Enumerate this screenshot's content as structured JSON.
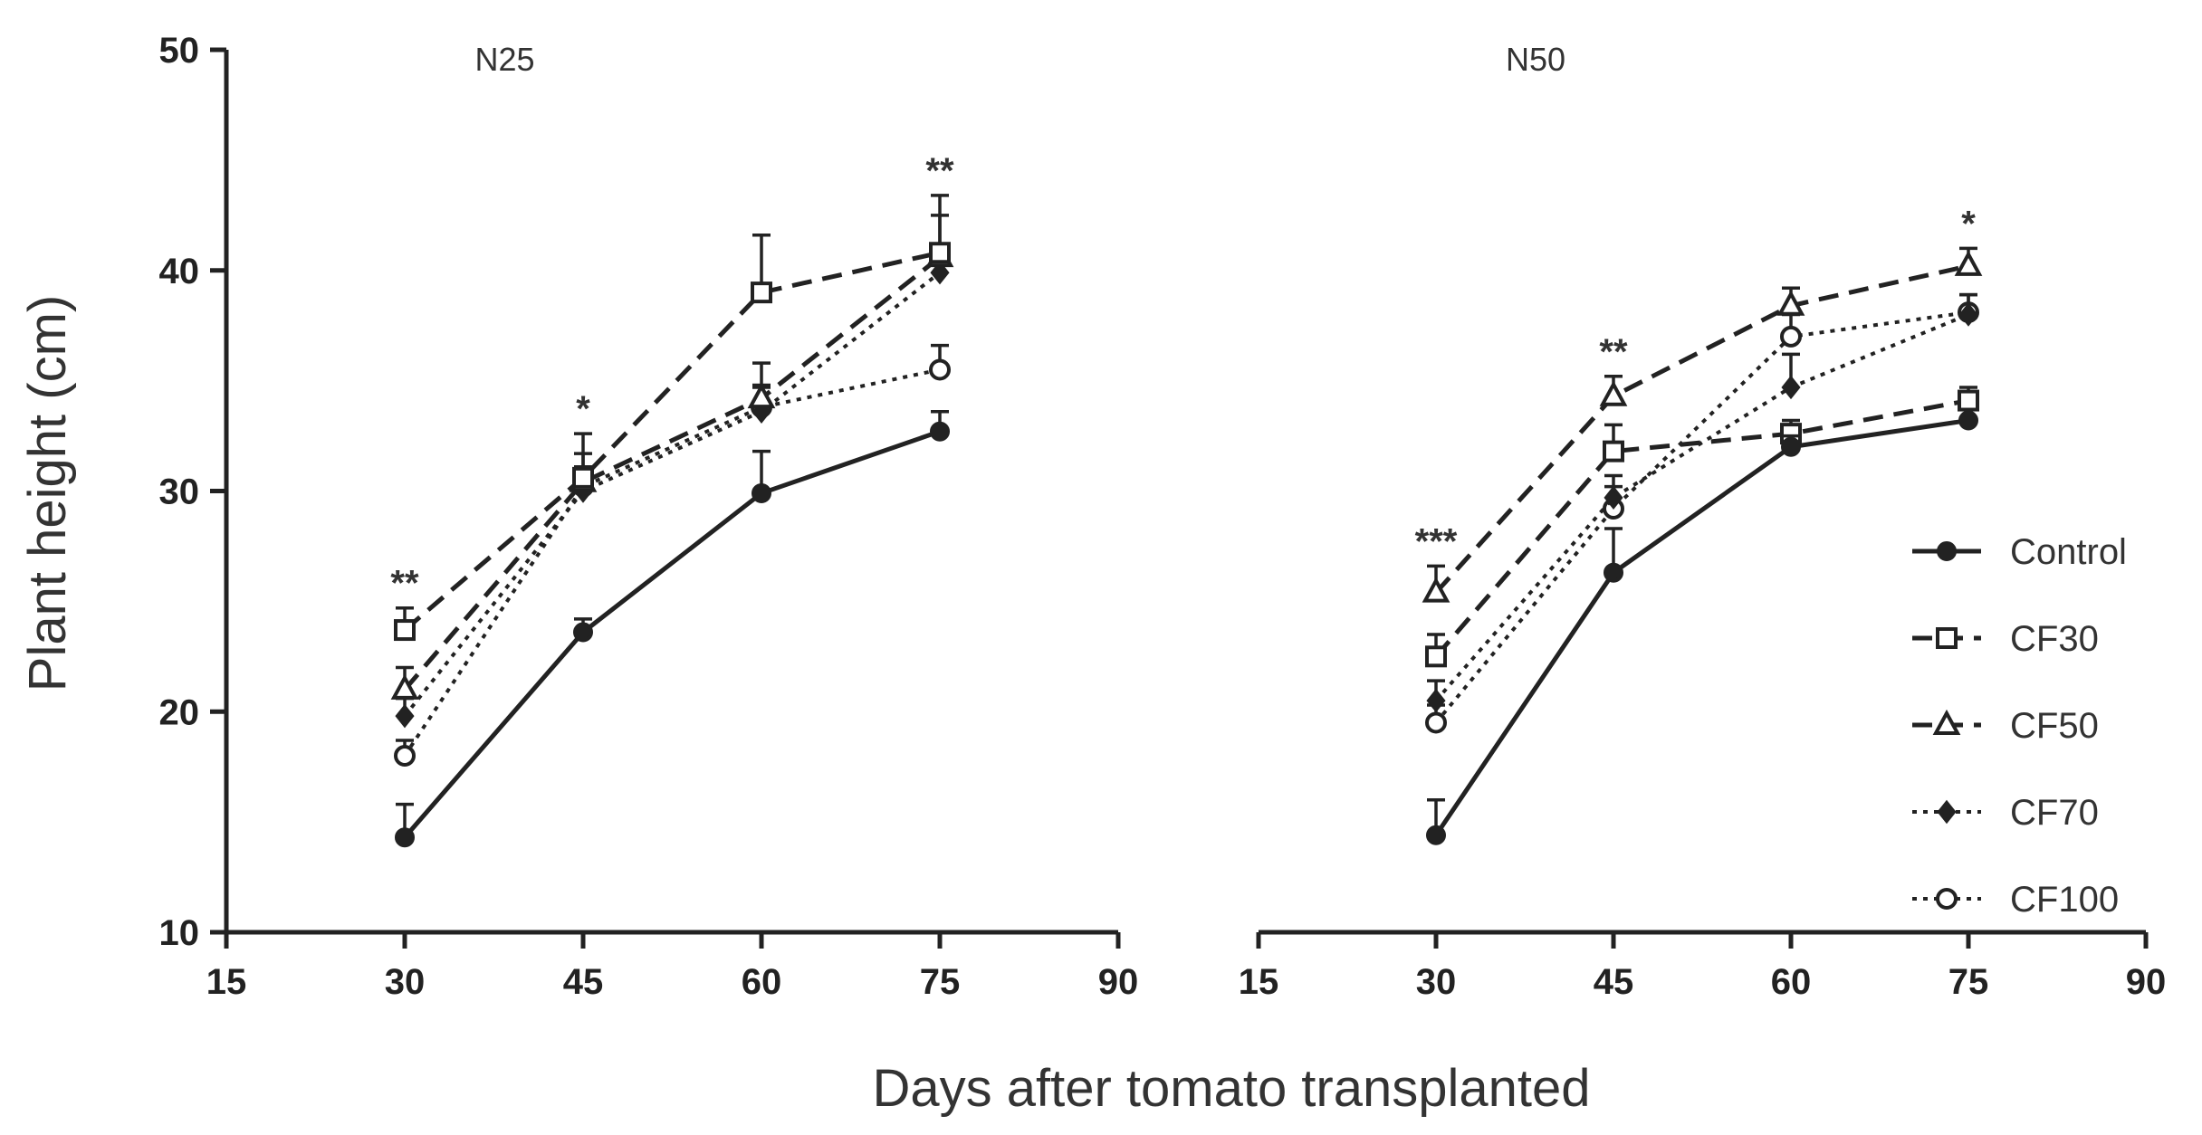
{
  "chart_data": [
    {
      "type": "line",
      "title": "N25",
      "xlabel": "Days after tomato transplanted",
      "ylabel": "Plant height (cm)",
      "xlim": [
        15,
        90
      ],
      "ylim": [
        10,
        50
      ],
      "x_ticks": [
        "15",
        "30",
        "45",
        "60",
        "75",
        "90"
      ],
      "y_ticks": [
        "10",
        "20",
        "30",
        "40",
        "50"
      ],
      "x": [
        30,
        45,
        60,
        75
      ],
      "series": [
        {
          "name": "Control",
          "values": [
            14.3,
            23.6,
            29.9,
            32.7
          ],
          "errors": [
            1.5,
            0.6,
            1.9,
            0.9
          ]
        },
        {
          "name": "CF30",
          "values": [
            23.7,
            30.6,
            39.0,
            40.8
          ],
          "errors": [
            1.0,
            2.0,
            2.6,
            2.6
          ]
        },
        {
          "name": "CF50",
          "values": [
            21.0,
            30.4,
            34.2,
            40.6
          ],
          "errors": [
            1.0,
            1.3,
            1.6,
            1.9
          ]
        },
        {
          "name": "CF70",
          "values": [
            19.8,
            30.0,
            33.6,
            39.9
          ],
          "errors": [
            0.8,
            1.0,
            1.1,
            1.3
          ]
        },
        {
          "name": "CF100",
          "values": [
            18.0,
            30.2,
            33.8,
            35.5
          ],
          "errors": [
            0.7,
            0.9,
            1.0,
            1.1
          ]
        }
      ],
      "significance": [
        {
          "x": 30,
          "label": "**"
        },
        {
          "x": 45,
          "label": "*"
        },
        {
          "x": 75,
          "label": "**"
        }
      ]
    },
    {
      "type": "line",
      "title": "N50",
      "xlim": [
        15,
        90
      ],
      "ylim": [
        10,
        50
      ],
      "x_ticks": [
        "15",
        "30",
        "45",
        "60",
        "75",
        "90"
      ],
      "x": [
        30,
        45,
        60,
        75
      ],
      "series": [
        {
          "name": "Control",
          "values": [
            14.4,
            26.3,
            32.0,
            33.2
          ],
          "errors": [
            1.6,
            2.0,
            0.5,
            0.5
          ]
        },
        {
          "name": "CF30",
          "values": [
            22.5,
            31.8,
            32.6,
            34.1
          ],
          "errors": [
            1.0,
            1.2,
            0.6,
            0.6
          ]
        },
        {
          "name": "CF50",
          "values": [
            25.4,
            34.3,
            38.4,
            40.2
          ],
          "errors": [
            1.2,
            0.9,
            0.8,
            0.8
          ]
        },
        {
          "name": "CF70",
          "values": [
            20.5,
            29.7,
            34.7,
            38.0
          ],
          "errors": [
            0.9,
            1.0,
            1.5,
            0.9
          ]
        },
        {
          "name": "CF100",
          "values": [
            19.5,
            29.2,
            37.0,
            38.1
          ],
          "errors": [
            0.8,
            1.0,
            1.0,
            0.8
          ]
        }
      ],
      "significance": [
        {
          "x": 30,
          "label": "***"
        },
        {
          "x": 45,
          "label": "**"
        },
        {
          "x": 75,
          "label": "*"
        }
      ]
    }
  ],
  "legend": {
    "placement": "bottom-right",
    "entries": [
      {
        "name": "Control",
        "line": "solid",
        "marker": "filled-circle"
      },
      {
        "name": "CF30",
        "line": "dashed",
        "marker": "open-square"
      },
      {
        "name": "CF50",
        "line": "dashed",
        "marker": "open-triangle"
      },
      {
        "name": "CF70",
        "line": "dotted",
        "marker": "filled-diamond"
      },
      {
        "name": "CF100",
        "line": "dotted",
        "marker": "open-circle"
      }
    ]
  },
  "colors": {
    "ink": "#222222",
    "text": "#333333",
    "background": "#ffffff"
  }
}
